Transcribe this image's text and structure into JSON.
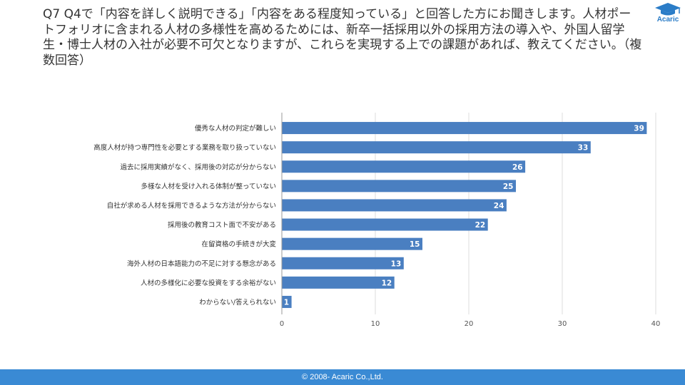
{
  "header": {
    "question": "Q7 Q4で「内容を詳しく説明できる」「内容をある程度知っている」と回答した方にお聞きします。人材ポートフォリオに含まれる人材の多様性を高めるためには、新卒一括採用以外の採用方法の導入や、外国人留学生・博士人材の入社が必要不可欠となりますが、これらを実現する上での課題があれば、教えてください。（複数回答）"
  },
  "logo": {
    "text": "Acaric",
    "icon": "graduation-cap-icon"
  },
  "footer": {
    "copyright": "© 2008- Acaric Co.,Ltd."
  },
  "colors": {
    "bar": "#4a7fc1",
    "footer": "#3a8ad4",
    "logo": "#2a7cc7"
  },
  "chart_data": {
    "type": "bar",
    "orientation": "horizontal",
    "categories": [
      "優秀な人材の判定が難しい",
      "高度人材が持つ専門性を必要とする業務を取り扱っていない",
      "過去に採用実績がなく、採用後の対応が分からない",
      "多様な人材を受け入れる体制が整っていない",
      "自社が求める人材を採用できるような方法が分からない",
      "採用後の教育コスト面で不安がある",
      "在留資格の手続きが大変",
      "海外人材の日本語能力の不足に対する懸念がある",
      "人材の多様化に必要な投資をする余裕がない",
      "わからない/答えられない"
    ],
    "values": [
      39,
      33,
      26,
      25,
      24,
      22,
      15,
      13,
      12,
      1
    ],
    "xlim": [
      0,
      40
    ],
    "xticks": [
      0,
      10,
      20,
      30,
      40
    ],
    "grid": true,
    "data_labels": true,
    "legend": false
  }
}
